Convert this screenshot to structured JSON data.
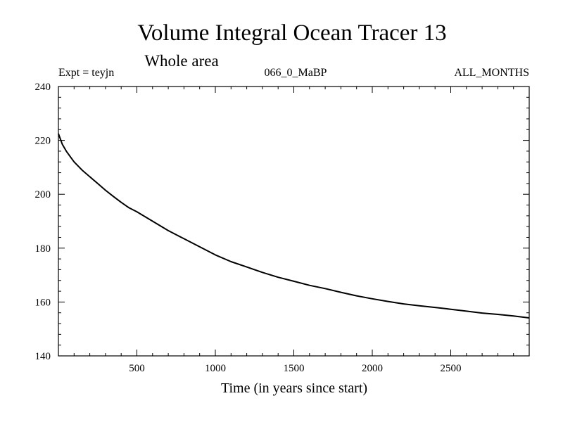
{
  "chart_data": {
    "type": "line",
    "title": "Volume Integral Ocean Tracer 13",
    "subtitle": "Whole area",
    "expt_label": "Expt = teyjn",
    "run_label": "066_0_MaBP",
    "period_label": "ALL_MONTHS",
    "xlabel": "Time (in years since start)",
    "ylabel": "",
    "xlim": [
      0,
      3000
    ],
    "ylim": [
      140,
      240
    ],
    "x_ticks": [
      500,
      1000,
      1500,
      2000,
      2500
    ],
    "y_ticks": [
      140,
      160,
      180,
      200,
      220,
      240
    ],
    "grid": false,
    "series": [
      {
        "name": "Ocean Tracer 13",
        "x": [
          0,
          25,
          50,
          75,
          100,
          150,
          200,
          250,
          300,
          350,
          400,
          450,
          500,
          600,
          700,
          800,
          900,
          1000,
          1100,
          1200,
          1300,
          1400,
          1500,
          1600,
          1700,
          1800,
          1900,
          2000,
          2100,
          2200,
          2300,
          2400,
          2500,
          2600,
          2700,
          2800,
          2900,
          3000
        ],
        "values": [
          222.5,
          218.5,
          216,
          214,
          212,
          209,
          206.5,
          204,
          201.5,
          199.2,
          197,
          195,
          193.5,
          190,
          186.5,
          183.5,
          180.5,
          177.5,
          175,
          173,
          171,
          169.2,
          167.7,
          166.2,
          165,
          163.6,
          162.3,
          161.2,
          160.2,
          159.3,
          158.6,
          158,
          157.3,
          156.6,
          155.9,
          155.4,
          154.8,
          154.1
        ]
      }
    ]
  }
}
